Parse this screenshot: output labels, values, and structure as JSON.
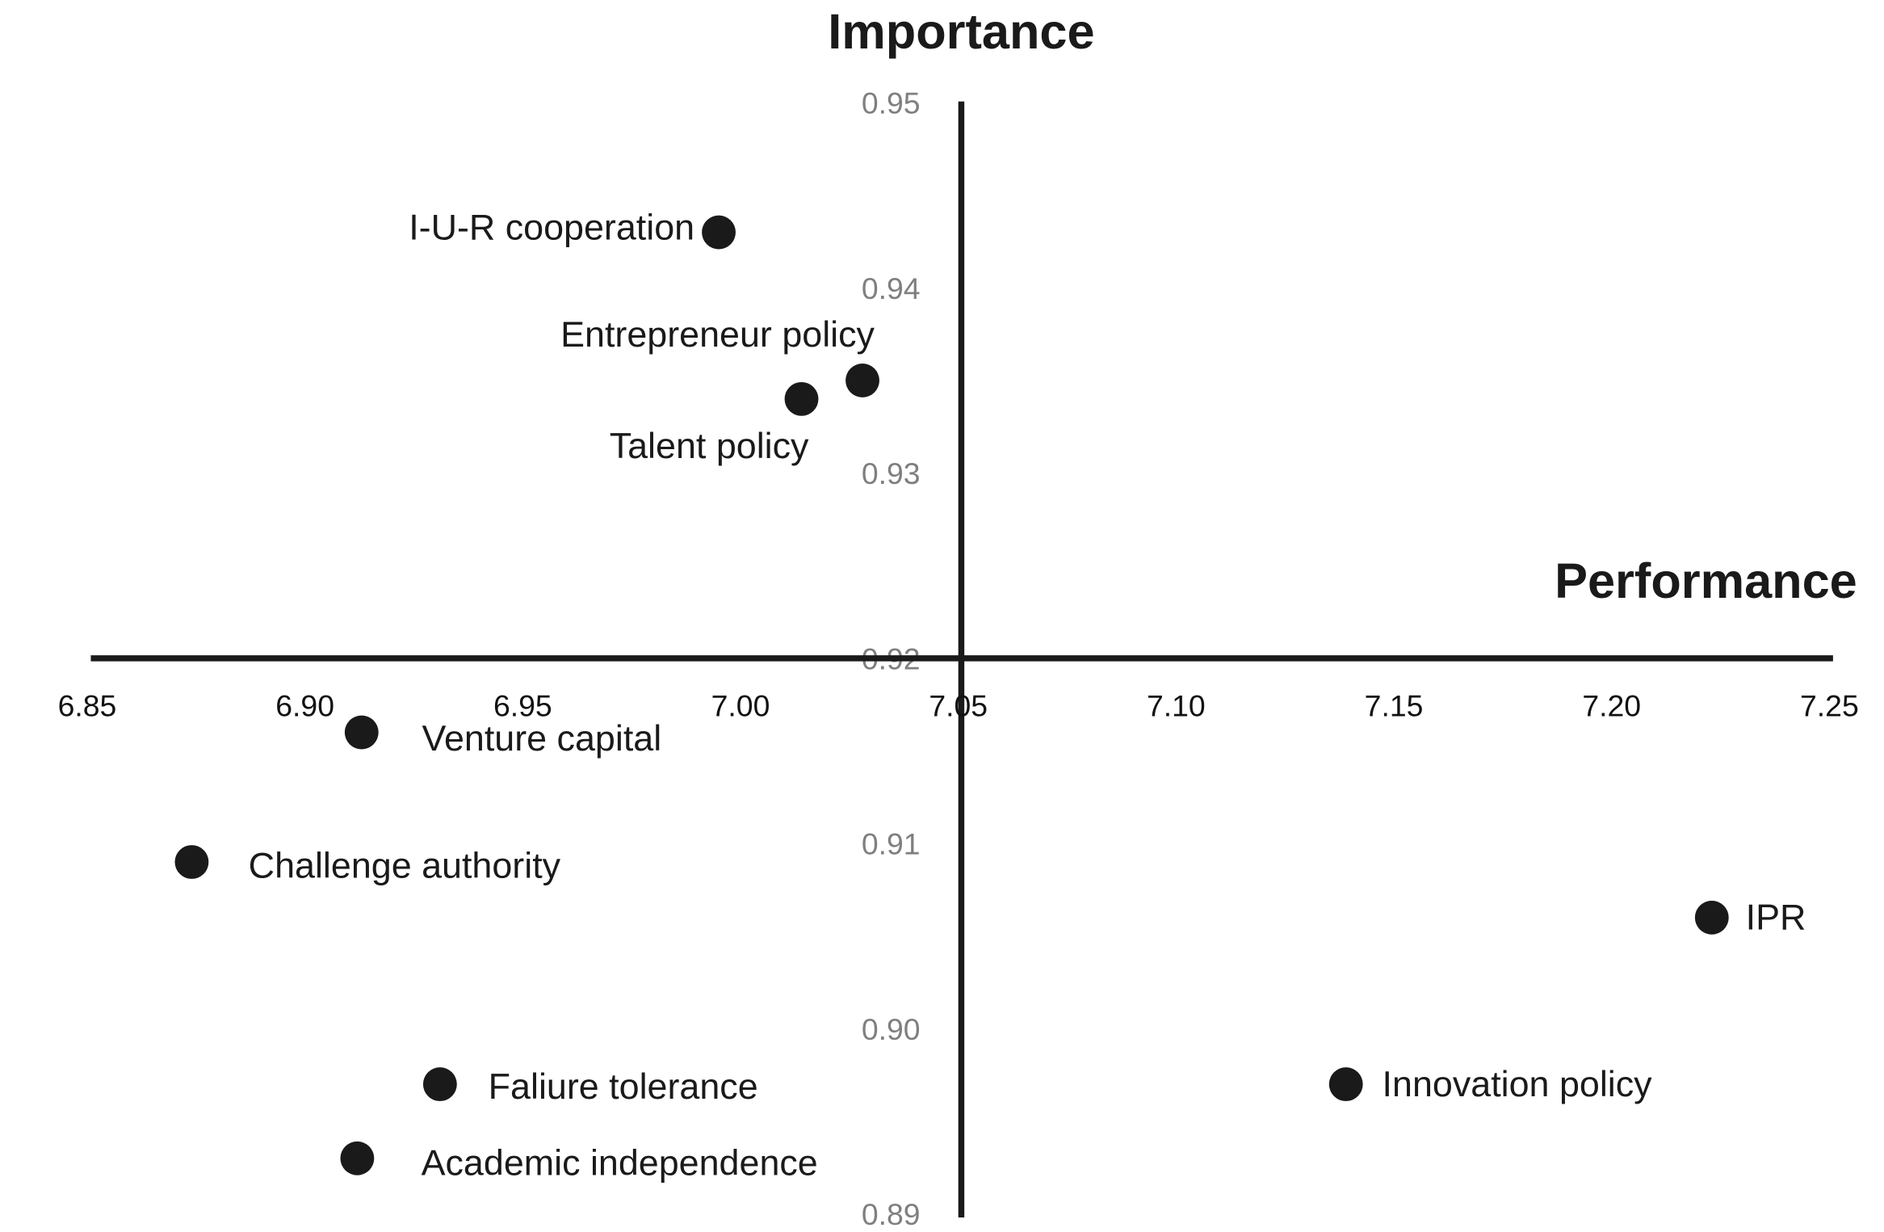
{
  "chart_data": {
    "type": "scatter",
    "title": "",
    "xlabel": "Performance",
    "ylabel": "Importance",
    "xlim": [
      6.85,
      7.25
    ],
    "ylim": [
      0.89,
      0.95
    ],
    "x_crosses_at_y": 0.92,
    "y_crosses_at_x": 7.05,
    "grid": false,
    "legend": "none",
    "x_ticks": [
      "6.85",
      "6.90",
      "6.95",
      "7.00",
      "7.05",
      "7.10",
      "7.15",
      "7.20",
      "7.25"
    ],
    "y_ticks": [
      "0.95",
      "0.94",
      "0.93",
      "0.92",
      "0.91",
      "0.90",
      "0.89"
    ],
    "marker_color": "#1a1a1a",
    "points": [
      {
        "label": "I-U-R cooperation",
        "x": 6.995,
        "y": 0.943
      },
      {
        "label": "Entrepreneur policy",
        "x": 7.028,
        "y": 0.935
      },
      {
        "label": "Talent policy",
        "x": 7.014,
        "y": 0.934
      },
      {
        "label": "Venture capital",
        "x": 6.913,
        "y": 0.916
      },
      {
        "label": "Challenge authority",
        "x": 6.874,
        "y": 0.909
      },
      {
        "label": "IPR",
        "x": 7.223,
        "y": 0.906
      },
      {
        "label": "Faliure tolerance",
        "x": 6.931,
        "y": 0.897
      },
      {
        "label": "Innovation policy",
        "x": 7.139,
        "y": 0.897
      },
      {
        "label": "Academic independence",
        "x": 6.912,
        "y": 0.893
      }
    ]
  }
}
